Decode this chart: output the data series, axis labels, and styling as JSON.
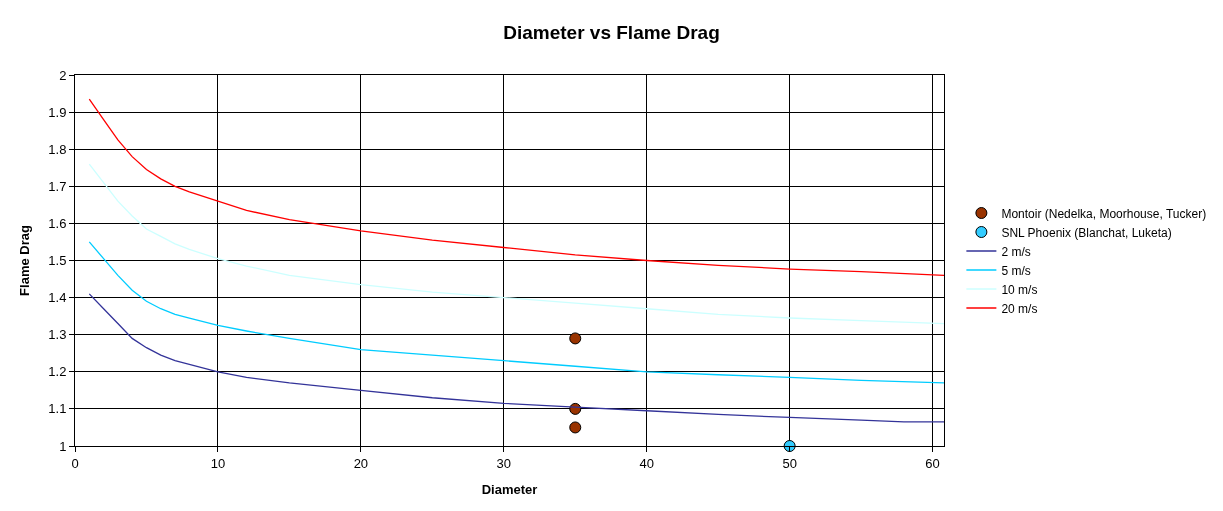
{
  "chart_data": {
    "type": "line",
    "title": "Diameter vs Flame Drag",
    "xlabel": "Diameter",
    "ylabel": "Flame Drag",
    "xlim": [
      0,
      60.8
    ],
    "xticks": [
      0,
      10,
      20,
      30,
      40,
      50,
      60
    ],
    "ylim": [
      1,
      2
    ],
    "yticks": [
      1,
      1.1,
      1.2,
      1.3,
      1.4,
      1.5,
      1.6,
      1.7,
      1.8,
      1.9,
      2
    ],
    "grid": true,
    "legend": "right",
    "marker": "none",
    "line_style": "solid",
    "series": [
      {
        "name": "Montoir (Nedelka, Moorhouse, Tucker)",
        "type": "scatter",
        "marker": "circle",
        "color": "#993300",
        "x": [
          35,
          35,
          35
        ],
        "values": [
          1.29,
          1.1,
          1.05
        ]
      },
      {
        "name": "SNL Phoenix (Blanchat, Luketa)",
        "type": "scatter",
        "marker": "circle",
        "color": "#33ccff",
        "x": [
          50
        ],
        "values": [
          1.0
        ]
      },
      {
        "name": "2 m/s",
        "color": "#333399",
        "x": [
          1,
          2,
          3,
          4,
          5,
          6,
          7,
          8,
          10,
          12,
          15,
          20,
          25,
          30,
          35,
          40,
          45,
          50,
          55,
          58,
          60.8
        ],
        "values": [
          1.41,
          1.37,
          1.33,
          1.29,
          1.265,
          1.245,
          1.23,
          1.22,
          1.2,
          1.185,
          1.17,
          1.15,
          1.13,
          1.115,
          1.105,
          1.095,
          1.085,
          1.077,
          1.07,
          1.065,
          1.065
        ]
      },
      {
        "name": "5 m/s",
        "color": "#00ccff",
        "x": [
          1,
          2,
          3,
          4,
          5,
          6,
          7,
          8,
          10,
          12,
          15,
          20,
          25,
          30,
          35,
          40,
          45,
          50,
          55,
          60.8
        ],
        "values": [
          1.55,
          1.505,
          1.46,
          1.42,
          1.39,
          1.37,
          1.355,
          1.345,
          1.325,
          1.31,
          1.29,
          1.26,
          1.245,
          1.23,
          1.215,
          1.2,
          1.192,
          1.185,
          1.177,
          1.17
        ]
      },
      {
        "name": "10 m/s",
        "color": "#ccffff",
        "x": [
          1,
          2,
          3,
          4,
          5,
          6,
          7,
          8,
          10,
          12,
          15,
          20,
          25,
          30,
          35,
          40,
          45,
          50,
          55,
          60.8
        ],
        "values": [
          1.76,
          1.71,
          1.66,
          1.62,
          1.585,
          1.565,
          1.545,
          1.53,
          1.505,
          1.485,
          1.46,
          1.435,
          1.415,
          1.4,
          1.385,
          1.37,
          1.355,
          1.345,
          1.338,
          1.33
        ]
      },
      {
        "name": "20 m/s",
        "color": "#ff0000",
        "x": [
          1,
          2,
          3,
          4,
          5,
          6,
          7,
          8,
          10,
          12,
          15,
          20,
          25,
          30,
          35,
          40,
          45,
          50,
          55,
          60.8
        ],
        "values": [
          1.935,
          1.88,
          1.825,
          1.78,
          1.745,
          1.72,
          1.7,
          1.685,
          1.66,
          1.635,
          1.61,
          1.58,
          1.555,
          1.535,
          1.515,
          1.5,
          1.487,
          1.477,
          1.47,
          1.46
        ]
      }
    ]
  }
}
